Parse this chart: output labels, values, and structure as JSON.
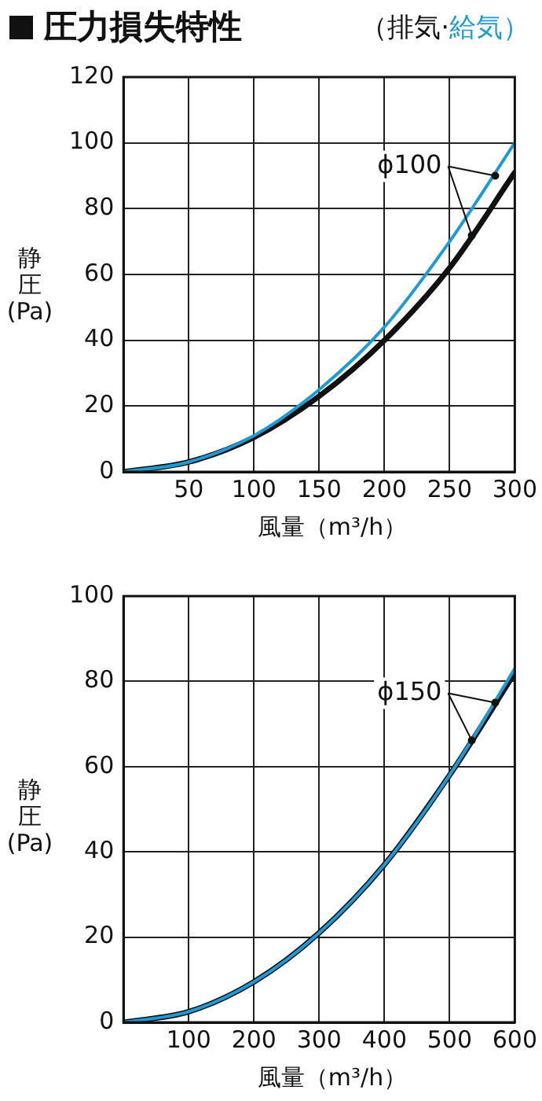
{
  "chart_data": [
    {
      "type": "line",
      "title": "圧力損失特性",
      "legend": "top right",
      "xlabel": "風量（m³/h）",
      "ylabel": "静圧(Pa)",
      "x": [
        0,
        50,
        100,
        150,
        200,
        250,
        300
      ],
      "series": [
        {
          "name": "（排気·",
          "color": "#111111",
          "values": [
            0,
            3,
            10.5,
            23,
            40,
            62,
            91
          ]
        },
        {
          "name": "給気）",
          "color": "#1e9ad6",
          "values": [
            0,
            3,
            11,
            25,
            44,
            70,
            100
          ]
        }
      ],
      "xlim": [
        0,
        300
      ],
      "xticks": [
        {
          "value": 0,
          "label": null
        },
        50,
        100,
        150,
        200,
        250,
        300
      ],
      "ylim": [
        0,
        120
      ],
      "yticks": [
        0,
        20,
        40,
        60,
        80,
        100,
        120
      ],
      "grid": true,
      "marker": "none",
      "line_style": "solid",
      "annotations": [
        {
          "text": "ϕ100",
          "x": 285,
          "y": 90
        }
      ]
    },
    {
      "type": "line",
      "xlabel": "風量（m³/h）",
      "ylabel": "静圧(Pa)",
      "x": [
        0,
        100,
        200,
        300,
        400,
        500,
        600
      ],
      "series": [
        {
          "color": "#111111",
          "values": [
            0,
            2.5,
            9.5,
            21,
            37,
            58,
            82
          ]
        },
        {
          "color": "#1e9ad6",
          "values": [
            0,
            2.5,
            9.5,
            21,
            37,
            58,
            83
          ]
        }
      ],
      "xlim": [
        0,
        600
      ],
      "xticks": [
        {
          "value": 0,
          "label": null
        },
        100,
        200,
        300,
        400,
        500,
        600
      ],
      "ylim": [
        0,
        100
      ],
      "yticks": [
        0,
        20,
        40,
        60,
        80,
        100
      ],
      "grid": true,
      "marker": "none",
      "line_style": "solid",
      "annotations": [
        {
          "text": "ϕ150",
          "x": 570,
          "y": 75
        }
      ]
    }
  ]
}
